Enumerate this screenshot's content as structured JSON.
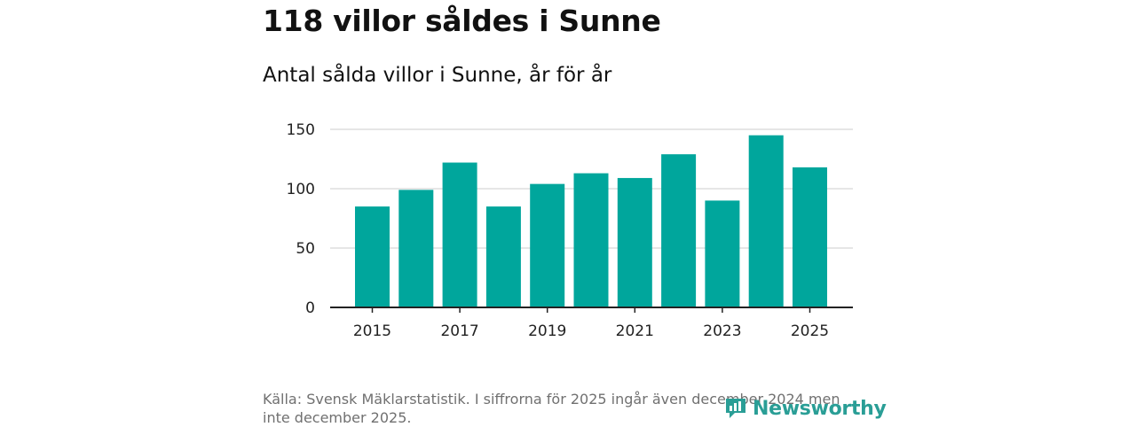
{
  "header": {
    "title": "118 villor såldes i Sunne",
    "subtitle": "Antal sålda villor i Sunne, år för år"
  },
  "footer": {
    "source": "Källa: Svensk Mäklarstatistik. I siffrorna för 2025 ingår även december 2024 men inte december 2025."
  },
  "brand": {
    "name": "Newsworthy",
    "icon": "newsworthy-logo-icon",
    "color": "#2a9e96"
  },
  "colors": {
    "bar": "#00a69c",
    "grid": "#dddddd",
    "axis": "#222222"
  },
  "chart_data": {
    "type": "bar",
    "title": "Antal sålda villor i Sunne, år för år",
    "xlabel": "",
    "ylabel": "",
    "categories": [
      "2015",
      "2016",
      "2017",
      "2018",
      "2019",
      "2020",
      "2021",
      "2022",
      "2023",
      "2024",
      "2025"
    ],
    "values": [
      85,
      99,
      122,
      85,
      104,
      113,
      109,
      129,
      90,
      145,
      118
    ],
    "ylim": [
      0,
      150
    ],
    "yticks": [
      0,
      50,
      100,
      150
    ],
    "xtick_labels": [
      "2015",
      "2017",
      "2019",
      "2021",
      "2023",
      "2025"
    ],
    "grid": true,
    "legend": "none"
  }
}
